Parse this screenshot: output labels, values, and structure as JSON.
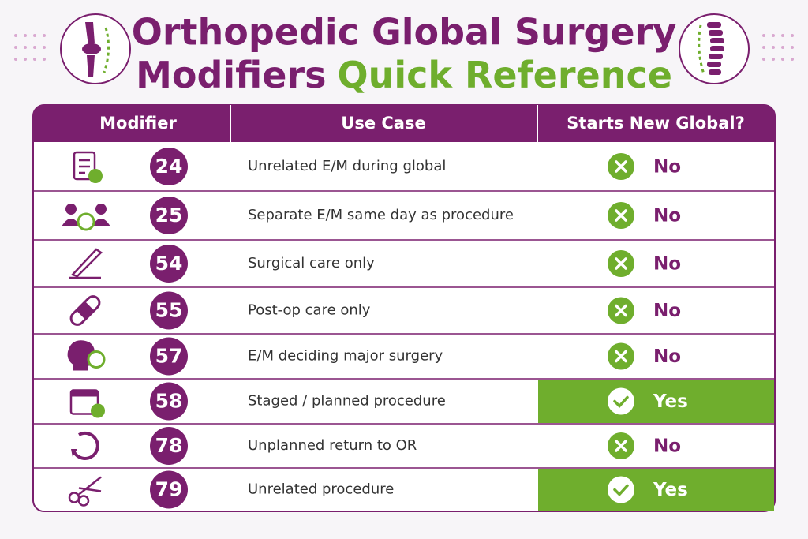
{
  "header": {
    "title_line1": "Orthopedic Global Surgery",
    "title_line2_a": "Modifiers",
    "title_line2_b": "Quick Reference"
  },
  "table": {
    "columns": [
      "Modifier",
      "Use Case",
      "Starts New Global?"
    ],
    "rows": [
      {
        "modifier": "24",
        "use_case": "Unrelated E/M during global",
        "answer": "No",
        "fill": "#ffffff"
      },
      {
        "modifier": "25",
        "use_case": "Separate E/M same day as procedure",
        "answer": "No",
        "fill": "#ffffff"
      },
      {
        "modifier": "54",
        "use_case": "Surgical care only",
        "answer": "No",
        "fill": "#ffffff"
      },
      {
        "modifier": "55",
        "use_case": "Post-op care only",
        "answer": "No",
        "fill": "#ffffff"
      },
      {
        "modifier": "57",
        "use_case": "E/M deciding major surgery",
        "answer": "No",
        "fill": "#ffffff"
      },
      {
        "modifier": "58",
        "use_case": "Staged / planned procedure",
        "answer": "Yes",
        "fill": "#6fae2d"
      },
      {
        "modifier": "78",
        "use_case": "Unplanned return to OR",
        "answer": "No",
        "fill": "#ffffff"
      },
      {
        "modifier": "79",
        "use_case": "Unrelated procedure",
        "answer": "Yes",
        "fill": "#6fae2d"
      }
    ]
  }
}
